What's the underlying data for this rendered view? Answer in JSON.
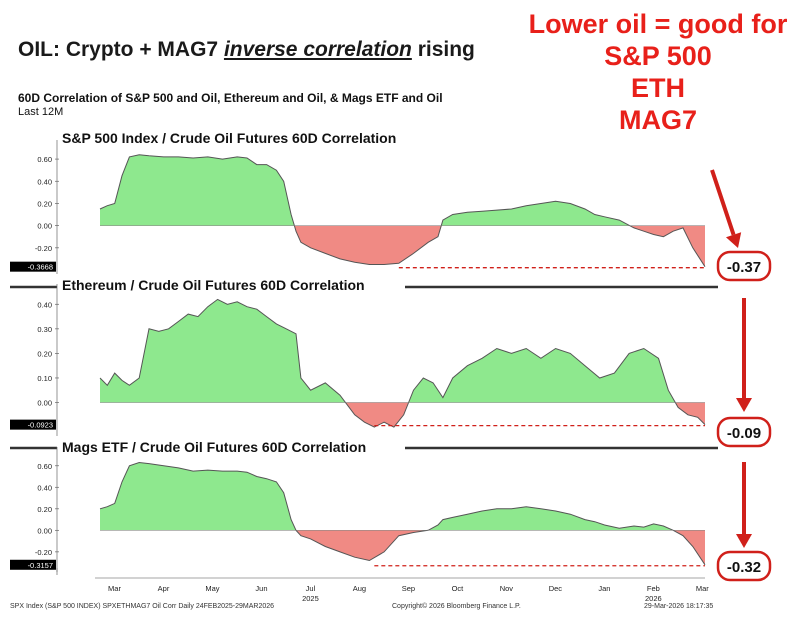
{
  "header": {
    "title_prefix": "OIL: Crypto + MAG7 ",
    "title_emphasis": "inverse correlation",
    "title_suffix": " rising",
    "subtitle": "60D Correlation of S&P 500 and Oil, Ethereum and Oil, & Mags ETF and Oil",
    "period": "Last 12M"
  },
  "callout": {
    "lines": [
      "Lower oil = good for",
      "S&P 500",
      "ETH",
      "MAG7"
    ],
    "color": "#e8201a"
  },
  "footer": {
    "left": "SPX Index (S&P 500 INDEX) SPXETHMAG7 Oil Corr Daily 24FEB2025-29MAR2026",
    "center": "Copyright© 2026 Bloomberg Finance L.P.",
    "right": "29-Mar-2026 18:17:35"
  },
  "colors": {
    "positive_fill": "#8ee88e",
    "negative_fill": "#f08a84",
    "line": "#555555",
    "dashed": "#d0201a",
    "arrow": "#d0201a"
  },
  "chart_data": [
    {
      "type": "area",
      "title": "S&P 500 Index / Crude Oil Futures 60D Correlation",
      "x_axis": [
        "Mar",
        "Apr",
        "May",
        "Jun",
        "Jul",
        "Aug",
        "Sep",
        "Oct",
        "Nov",
        "Dec",
        "Jan",
        "Feb",
        "Mar"
      ],
      "year_labels": [
        "2025",
        "2026"
      ],
      "ylim": [
        -0.4,
        0.7
      ],
      "y_ticks": [
        "0.60",
        "0.40",
        "0.20",
        "0.00",
        "-0.20"
      ],
      "last_value_label": "-0.3668",
      "callout_value": "-0.37",
      "series": [
        {
          "x": [
            0,
            0.15,
            0.3,
            0.45,
            0.6,
            0.8,
            1.0,
            1.3,
            1.6,
            1.9,
            2.2,
            2.5,
            2.8,
            3.0,
            3.2,
            3.4,
            3.6,
            3.75,
            3.9,
            4.0,
            4.1,
            4.3,
            4.6,
            4.9,
            5.2,
            5.5,
            5.8,
            6.1,
            6.4,
            6.7,
            6.9,
            7.0,
            7.2,
            7.5,
            7.8,
            8.1,
            8.4,
            8.7,
            9.0,
            9.3,
            9.6,
            9.9,
            10.1,
            10.3,
            10.6,
            10.9,
            11.1,
            11.3,
            11.5,
            11.7,
            11.9,
            12.1,
            12.35
          ],
          "y": [
            0.15,
            0.18,
            0.2,
            0.45,
            0.62,
            0.64,
            0.63,
            0.62,
            0.62,
            0.61,
            0.62,
            0.6,
            0.62,
            0.61,
            0.55,
            0.55,
            0.5,
            0.4,
            0.1,
            -0.05,
            -0.15,
            -0.2,
            -0.25,
            -0.3,
            -0.33,
            -0.35,
            -0.35,
            -0.34,
            -0.25,
            -0.15,
            -0.1,
            0.05,
            0.1,
            0.12,
            0.13,
            0.14,
            0.15,
            0.18,
            0.2,
            0.22,
            0.2,
            0.15,
            0.1,
            0.08,
            0.05,
            -0.02,
            -0.05,
            -0.08,
            -0.1,
            -0.05,
            -0.02,
            -0.2,
            -0.37
          ]
        }
      ]
    },
    {
      "type": "area",
      "title": "Ethereum / Crude Oil Futures 60D Correlation",
      "ylim": [
        -0.12,
        0.45
      ],
      "y_ticks": [
        "0.40",
        "0.30",
        "0.20",
        "0.10",
        "0.00"
      ],
      "last_value_label": "-0.0923",
      "callout_value": "-0.09",
      "series": [
        {
          "x": [
            0,
            0.15,
            0.3,
            0.45,
            0.6,
            0.8,
            1.0,
            1.2,
            1.4,
            1.6,
            1.8,
            2.0,
            2.2,
            2.4,
            2.6,
            2.8,
            3.0,
            3.2,
            3.4,
            3.6,
            3.8,
            4.0,
            4.1,
            4.3,
            4.6,
            4.9,
            5.2,
            5.4,
            5.6,
            5.8,
            6.0,
            6.2,
            6.4,
            6.6,
            6.8,
            7.0,
            7.2,
            7.5,
            7.8,
            8.1,
            8.4,
            8.7,
            9.0,
            9.3,
            9.6,
            9.9,
            10.2,
            10.5,
            10.8,
            11.1,
            11.4,
            11.6,
            11.8,
            12.0,
            12.2,
            12.35
          ],
          "y": [
            0.1,
            0.07,
            0.12,
            0.09,
            0.07,
            0.1,
            0.3,
            0.29,
            0.3,
            0.33,
            0.36,
            0.35,
            0.39,
            0.42,
            0.4,
            0.41,
            0.39,
            0.38,
            0.35,
            0.32,
            0.3,
            0.28,
            0.1,
            0.05,
            0.08,
            0.03,
            -0.05,
            -0.08,
            -0.1,
            -0.08,
            -0.1,
            -0.05,
            0.05,
            0.1,
            0.08,
            0.02,
            0.1,
            0.15,
            0.18,
            0.22,
            0.2,
            0.22,
            0.18,
            0.22,
            0.2,
            0.15,
            0.1,
            0.12,
            0.2,
            0.22,
            0.18,
            0.05,
            -0.02,
            -0.05,
            -0.06,
            -0.09
          ]
        }
      ]
    },
    {
      "type": "area",
      "title": "Mags ETF / Crude Oil Futures 60D Correlation",
      "ylim": [
        -0.35,
        0.7
      ],
      "y_ticks": [
        "0.60",
        "0.40",
        "0.20",
        "0.00",
        "-0.20"
      ],
      "last_value_label": "-0.3157",
      "callout_value": "-0.32",
      "series": [
        {
          "x": [
            0,
            0.15,
            0.3,
            0.45,
            0.6,
            0.8,
            1.0,
            1.3,
            1.6,
            1.9,
            2.2,
            2.5,
            2.8,
            3.0,
            3.2,
            3.4,
            3.6,
            3.75,
            3.9,
            4.0,
            4.1,
            4.3,
            4.6,
            4.9,
            5.2,
            5.5,
            5.8,
            6.1,
            6.4,
            6.7,
            6.9,
            7.0,
            7.2,
            7.5,
            7.8,
            8.1,
            8.4,
            8.7,
            9.0,
            9.3,
            9.6,
            9.9,
            10.1,
            10.3,
            10.6,
            10.9,
            11.1,
            11.3,
            11.5,
            11.7,
            11.9,
            12.1,
            12.35
          ],
          "y": [
            0.2,
            0.22,
            0.25,
            0.45,
            0.6,
            0.63,
            0.62,
            0.6,
            0.58,
            0.55,
            0.56,
            0.55,
            0.55,
            0.54,
            0.5,
            0.48,
            0.45,
            0.35,
            0.1,
            0.0,
            -0.05,
            -0.08,
            -0.15,
            -0.2,
            -0.25,
            -0.28,
            -0.2,
            -0.05,
            -0.02,
            0.0,
            0.05,
            0.1,
            0.12,
            0.15,
            0.18,
            0.2,
            0.2,
            0.22,
            0.2,
            0.18,
            0.15,
            0.1,
            0.08,
            0.05,
            0.02,
            0.04,
            0.03,
            0.06,
            0.04,
            0.0,
            -0.05,
            -0.15,
            -0.32
          ]
        }
      ]
    }
  ]
}
